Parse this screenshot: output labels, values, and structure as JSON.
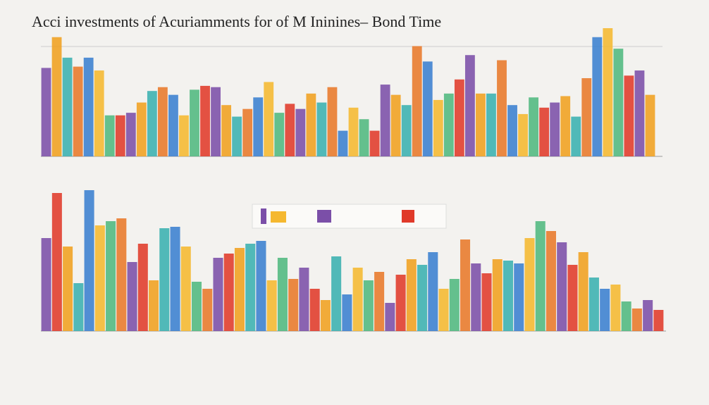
{
  "title": "Acci investments of Acuriamments for of M Ininines– Bond Time",
  "chart_data": [
    {
      "type": "bar",
      "values": [
        69,
        93,
        77,
        70,
        77,
        67,
        32,
        32,
        34,
        42,
        51,
        54,
        48,
        32,
        52,
        55,
        54,
        40,
        31,
        37,
        46,
        58,
        34,
        41,
        37,
        49,
        42,
        54,
        20,
        38,
        29,
        20,
        56,
        48,
        40,
        86,
        74,
        44,
        49,
        60,
        79,
        49,
        49,
        75,
        40,
        33,
        46,
        38,
        42,
        47,
        31,
        61,
        93,
        100,
        84,
        63,
        67,
        48
      ],
      "colors": [
        "#7b4fa8",
        "#f0a020",
        "#3ab0b0",
        "#e8792a",
        "#3a7fd0",
        "#f5b830",
        "#50b880",
        "#e03a2a"
      ],
      "ylim": [
        0,
        100
      ]
    },
    {
      "type": "bar",
      "values": [
        66,
        98,
        60,
        34,
        100,
        75,
        78,
        80,
        49,
        62,
        36,
        73,
        74,
        60,
        35,
        30,
        52,
        55,
        59,
        62,
        64,
        36,
        52,
        37,
        45,
        30,
        22,
        53,
        26,
        45,
        36,
        42,
        20,
        40,
        51,
        47,
        56,
        30,
        37,
        65,
        48,
        41,
        51,
        50,
        48,
        66,
        78,
        71,
        63,
        47,
        56,
        38,
        30,
        33,
        21,
        16,
        22,
        15
      ],
      "colors": [
        "#7b4fa8",
        "#e03a2a",
        "#f0a020",
        "#3ab0b0",
        "#3a7fd0",
        "#f5b830",
        "#50b880",
        "#e8792a"
      ],
      "ylim": [
        0,
        100
      ]
    }
  ]
}
